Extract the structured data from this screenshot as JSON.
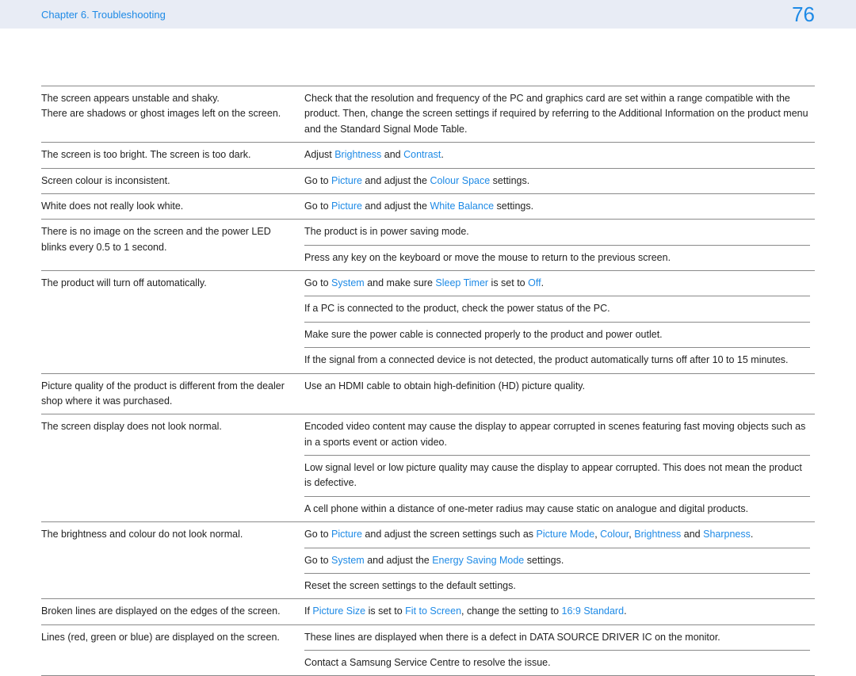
{
  "header": {
    "chapter": "Chapter 6. Troubleshooting",
    "page": "76"
  },
  "rows": {
    "r1": {
      "left": "The screen appears unstable and shaky.\nThere are shadows or ghost images left on the screen.",
      "right": "Check that the resolution and frequency of the PC and graphics card are set within a range compatible with the product. Then, change the screen settings if required by referring to the Additional Information on the product menu and the Standard Signal Mode Table."
    },
    "r2": {
      "left": "The screen is too bright. The screen is too dark.",
      "right_pre": "Adjust ",
      "l1": "Brightness",
      "mid": " and ",
      "l2": "Contrast",
      "post": "."
    },
    "r3": {
      "left": "Screen colour is inconsistent.",
      "pre": "Go to ",
      "l1": "Picture",
      "mid": " and adjust the ",
      "l2": "Colour Space",
      "post": " settings."
    },
    "r4": {
      "left": "White does not really look white.",
      "pre": "Go to ",
      "l1": "Picture",
      "mid": " and adjust the ",
      "l2": "White Balance",
      "post": " settings."
    },
    "r5": {
      "left": "There is no image on the screen and the power LED blinks every 0.5 to 1 second.",
      "a": "The product is in power saving mode.",
      "b": "Press any key on the keyboard or move the mouse to return to the previous screen."
    },
    "r6": {
      "left": "The product will turn off automatically.",
      "a_pre": "Go to ",
      "a_l1": "System",
      "a_mid": " and make sure ",
      "a_l2": "Sleep Timer",
      "a_mid2": " is set to ",
      "a_l3": "Off",
      "a_post": ".",
      "b": "If a PC is connected to the product, check the power status of the PC.",
      "c": "Make sure the power cable is connected properly to the product and power outlet.",
      "d": "If the signal from a connected device is not detected, the product automatically turns off after 10 to 15 minutes."
    },
    "r7": {
      "left": "Picture quality of the product is different from the dealer shop where it was purchased.",
      "right": "Use an HDMI cable to obtain high-definition (HD) picture quality."
    },
    "r8": {
      "left": "The screen display does not look normal.",
      "a": "Encoded video content may cause the display to appear corrupted in scenes featuring fast moving objects such as in a sports event or action video.",
      "b": "Low signal level or low picture quality may cause the display to appear corrupted. This does not mean the product is defective.",
      "c": "A cell phone within a distance of one-meter radius may cause static on analogue and digital products."
    },
    "r9": {
      "left": "The brightness and colour do not look normal.",
      "a_pre": "Go to ",
      "a_l1": "Picture",
      "a_mid": " and adjust the screen settings such as ",
      "a_l2": "Picture Mode",
      "a_s1": ", ",
      "a_l3": "Colour",
      "a_s2": ", ",
      "a_l4": "Brightness",
      "a_s3": " and ",
      "a_l5": "Sharpness",
      "a_post": ".",
      "b_pre": "Go to ",
      "b_l1": "System",
      "b_mid": " and adjust the ",
      "b_l2": "Energy Saving Mode",
      "b_post": " settings.",
      "c": "Reset the screen settings to the default settings."
    },
    "r10": {
      "left": "Broken lines are displayed on the edges of the screen.",
      "pre": "If ",
      "l1": "Picture Size",
      "mid": " is set to ",
      "l2": "Fit to Screen",
      "mid2": ", change the setting to ",
      "l3": "16:9 Standard",
      "post": "."
    },
    "r11": {
      "left": "Lines (red, green or blue) are displayed on the screen.",
      "a": "These lines are displayed when there is a defect in DATA SOURCE DRIVER IC on the monitor.",
      "b": "Contact a Samsung Service Centre to resolve the issue."
    }
  }
}
